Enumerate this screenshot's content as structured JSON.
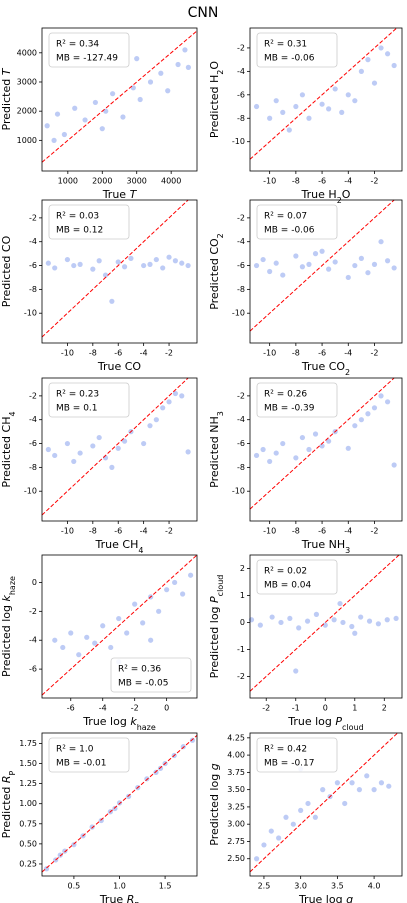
{
  "title": "CNN",
  "chart_data": [
    {
      "type": "scatter",
      "color": "#4169e1",
      "identity_line": "#ff0000",
      "annotation_loc": "upper left",
      "annotations": [
        "R² = 0.34",
        "MB = -127.49"
      ],
      "xlabel": [
        {
          "text": "True "
        },
        {
          "text": "T",
          "style": "italic"
        }
      ],
      "ylabel": [
        {
          "text": "Predicted "
        },
        {
          "text": "T",
          "style": "italic"
        }
      ],
      "xlim": [
        250,
        4750
      ],
      "ylim": [
        -50,
        4850
      ],
      "xticks": [
        1000,
        2000,
        3000,
        4000
      ],
      "yticks": [
        1000,
        2000,
        3000,
        4000
      ],
      "x": [
        400,
        700,
        900,
        1200,
        1500,
        1800,
        2100,
        2300,
        2600,
        2900,
        3100,
        3400,
        3700,
        3900,
        4200,
        4500,
        600,
        2000,
        3000,
        4400
      ],
      "values": [
        1500,
        1900,
        1200,
        2100,
        1700,
        2300,
        2000,
        2600,
        1800,
        2800,
        2400,
        3000,
        3300,
        2700,
        3600,
        3500,
        1000,
        1400,
        3800,
        4100
      ]
    },
    {
      "type": "scatter",
      "color": "#4169e1",
      "identity_line": "#ff0000",
      "annotation_loc": "upper left",
      "annotations": [
        "R² = 0.31",
        "MB = -0.06"
      ],
      "xlabel": [
        {
          "text": "True H"
        },
        {
          "text": "2",
          "style": "sub"
        },
        {
          "text": "O"
        }
      ],
      "ylabel": [
        {
          "text": "Predicted H"
        },
        {
          "text": "2",
          "style": "sub"
        },
        {
          "text": "O"
        }
      ],
      "xlim": [
        -11.5,
        0.1
      ],
      "ylim": [
        -12.5,
        -0.3
      ],
      "xticks": [
        -10,
        -8,
        -6,
        -4,
        -2
      ],
      "yticks": [
        -10,
        -8,
        -6,
        -4,
        -2
      ],
      "x": [
        -11,
        -10,
        -9.5,
        -9,
        -8,
        -7.5,
        -7,
        -6,
        -5.5,
        -5,
        -4,
        -3.5,
        -3,
        -2.5,
        -2,
        -1,
        -0.5,
        -8.5,
        -4.5,
        -1.5
      ],
      "values": [
        -7,
        -8,
        -6.5,
        -7.5,
        -7,
        -6,
        -8,
        -6.8,
        -7.2,
        -5.5,
        -6,
        -6.5,
        -4,
        -3,
        -5,
        -2.5,
        -3.5,
        -9,
        -7.5,
        -2
      ]
    },
    {
      "type": "scatter",
      "color": "#4169e1",
      "identity_line": "#ff0000",
      "annotation_loc": "upper left",
      "annotations": [
        "R² = 0.03",
        "MB = 0.12"
      ],
      "xlabel": [
        {
          "text": "True CO"
        }
      ],
      "ylabel": [
        {
          "text": "Predicted CO"
        }
      ],
      "xlim": [
        -12,
        0.2
      ],
      "ylim": [
        -12.5,
        -0.5
      ],
      "xticks": [
        -10,
        -8,
        -6,
        -4,
        -2
      ],
      "yticks": [
        -10,
        -8,
        -6,
        -4,
        -2
      ],
      "x": [
        -11.5,
        -11,
        -10,
        -9.5,
        -9,
        -8,
        -7.5,
        -7,
        -6,
        -5.5,
        -5,
        -4,
        -3.5,
        -3,
        -2.5,
        -2,
        -1,
        -0.5,
        -6.5,
        -1.5
      ],
      "values": [
        -5.8,
        -6.2,
        -5.5,
        -6,
        -5.9,
        -6.3,
        -5.6,
        -6.8,
        -5.7,
        -6.1,
        -5.4,
        -6,
        -5.9,
        -5.5,
        -6.2,
        -5.3,
        -5.8,
        -6,
        -9,
        -5.6
      ]
    },
    {
      "type": "scatter",
      "color": "#4169e1",
      "identity_line": "#ff0000",
      "annotation_loc": "upper left",
      "annotations": [
        "R² = 0.07",
        "MB = -0.06"
      ],
      "xlabel": [
        {
          "text": "True CO"
        },
        {
          "text": "2",
          "style": "sub"
        }
      ],
      "ylabel": [
        {
          "text": "Predicted CO"
        },
        {
          "text": "2",
          "style": "sub"
        }
      ],
      "xlim": [
        -11.5,
        0.1
      ],
      "ylim": [
        -12.5,
        -0.5
      ],
      "xticks": [
        -10,
        -8,
        -6,
        -4,
        -2
      ],
      "yticks": [
        -10,
        -8,
        -6,
        -4,
        -2
      ],
      "x": [
        -11,
        -10.5,
        -10,
        -9.5,
        -9,
        -8,
        -7.5,
        -7,
        -6,
        -5.5,
        -5,
        -4,
        -3.5,
        -3,
        -2.5,
        -2,
        -1,
        -0.5,
        -6.5,
        -1.5
      ],
      "values": [
        -6,
        -5.5,
        -6.5,
        -5.8,
        -6.8,
        -5.2,
        -6.1,
        -5.9,
        -4.8,
        -6.3,
        -5.7,
        -7,
        -6,
        -5.4,
        -6.6,
        -5.9,
        -5.6,
        -6.2,
        -5,
        -4
      ]
    },
    {
      "type": "scatter",
      "color": "#4169e1",
      "identity_line": "#ff0000",
      "annotation_loc": "upper left",
      "annotations": [
        "R² = 0.23",
        "MB = 0.1"
      ],
      "xlabel": [
        {
          "text": "True CH"
        },
        {
          "text": "4",
          "style": "sub"
        }
      ],
      "ylabel": [
        {
          "text": "Predicted CH"
        },
        {
          "text": "4",
          "style": "sub"
        }
      ],
      "xlim": [
        -12,
        0.2
      ],
      "ylim": [
        -12.5,
        -0.5
      ],
      "xticks": [
        -10,
        -8,
        -6,
        -4,
        -2
      ],
      "yticks": [
        -10,
        -8,
        -6,
        -4,
        -2
      ],
      "x": [
        -11.5,
        -11,
        -10,
        -9.5,
        -9,
        -8,
        -7.5,
        -7,
        -6,
        -5.5,
        -5,
        -4,
        -3.5,
        -3,
        -2.5,
        -2,
        -1,
        -0.5,
        -6.5,
        -1.5
      ],
      "values": [
        -6.5,
        -7,
        -6,
        -7.5,
        -6.8,
        -6.2,
        -5.5,
        -7.2,
        -6.4,
        -5.8,
        -5,
        -6,
        -4.5,
        -4,
        -3,
        -2.5,
        -2,
        -6.7,
        -8,
        -1.8
      ]
    },
    {
      "type": "scatter",
      "color": "#4169e1",
      "identity_line": "#ff0000",
      "annotation_loc": "upper left",
      "annotations": [
        "R² = 0.26",
        "MB = -0.39"
      ],
      "xlabel": [
        {
          "text": "True NH"
        },
        {
          "text": "3",
          "style": "sub"
        }
      ],
      "ylabel": [
        {
          "text": "Predicted NH"
        },
        {
          "text": "3",
          "style": "sub"
        }
      ],
      "xlim": [
        -11.5,
        0.1
      ],
      "ylim": [
        -12.5,
        -0.5
      ],
      "xticks": [
        -10,
        -8,
        -6,
        -4,
        -2
      ],
      "yticks": [
        -10,
        -8,
        -6,
        -4,
        -2
      ],
      "x": [
        -11,
        -10.5,
        -10,
        -9.5,
        -9,
        -8,
        -7.5,
        -7,
        -6,
        -5.5,
        -5,
        -4,
        -3.5,
        -3,
        -2.5,
        -2,
        -1,
        -0.5,
        -6.5,
        -1.5
      ],
      "values": [
        -7,
        -6.5,
        -7.5,
        -6.8,
        -6,
        -7.2,
        -5.5,
        -6.5,
        -6.2,
        -5.8,
        -5,
        -6.4,
        -4.5,
        -4,
        -3.5,
        -3,
        -2.5,
        -7.8,
        -5.2,
        -2
      ]
    },
    {
      "type": "scatter",
      "color": "#4169e1",
      "identity_line": "#ff0000",
      "annotation_loc": "lower right",
      "annotations": [
        "R² = 0.36",
        "MB = -0.05"
      ],
      "xlabel": [
        {
          "text": "True log "
        },
        {
          "text": "k",
          "style": "italic"
        },
        {
          "text": "haze",
          "style": "sub"
        }
      ],
      "ylabel": [
        {
          "text": "Predicted log "
        },
        {
          "text": "k",
          "style": "italic"
        },
        {
          "text": "haze",
          "style": "sub"
        }
      ],
      "xlim": [
        -7.8,
        1.9
      ],
      "ylim": [
        -8,
        1.9
      ],
      "xticks": [
        -6,
        -4,
        -2,
        0
      ],
      "yticks": [
        -6,
        -4,
        -2,
        0
      ],
      "x": [
        -7,
        -6.5,
        -6,
        -5.5,
        -5,
        -4.5,
        -4,
        -3.5,
        -3,
        -2.5,
        -2,
        -1.5,
        -1,
        -0.5,
        0,
        0.5,
        1,
        1.5,
        -3,
        -1
      ],
      "values": [
        -4,
        -4.5,
        -3.5,
        -5,
        -3.8,
        -4.2,
        -3,
        -4.5,
        -2.5,
        -3.5,
        -1.5,
        -2.8,
        -1,
        -2,
        -0.5,
        0,
        -0.8,
        0.5,
        -5.5,
        -4
      ]
    },
    {
      "type": "scatter",
      "color": "#4169e1",
      "identity_line": "#ff0000",
      "annotation_loc": "upper left",
      "annotations": [
        "R² = 0.02",
        "MB = 0.04"
      ],
      "xlabel": [
        {
          "text": "True log "
        },
        {
          "text": "P",
          "style": "italic"
        },
        {
          "text": "cloud",
          "style": "sub"
        }
      ],
      "ylabel": [
        {
          "text": "Predicted log "
        },
        {
          "text": "P",
          "style": "italic"
        },
        {
          "text": "cloud",
          "style": "sub"
        }
      ],
      "xlim": [
        -2.55,
        2.6
      ],
      "ylim": [
        -2.8,
        2.5
      ],
      "xticks": [
        -2,
        -1,
        0,
        1,
        2
      ],
      "yticks": [
        -2,
        -1,
        0,
        1,
        2
      ],
      "x": [
        -2.5,
        -2.2,
        -1.8,
        -1.5,
        -1.2,
        -0.9,
        -0.6,
        -0.3,
        0,
        0.3,
        0.6,
        0.9,
        1.2,
        1.5,
        1.8,
        2.1,
        2.4,
        -1,
        0.5,
        1
      ],
      "values": [
        0.1,
        -0.1,
        0.2,
        0,
        0.15,
        -0.2,
        0.05,
        0.3,
        -0.1,
        0.1,
        0,
        -0.15,
        0.2,
        0.05,
        -0.05,
        0.1,
        0.15,
        -1.8,
        0.7,
        -0.4
      ]
    },
    {
      "type": "scatter",
      "color": "#4169e1",
      "identity_line": "#ff0000",
      "annotation_loc": "upper left",
      "annotations": [
        "R² = 1.0",
        "MB = -0.01"
      ],
      "xlabel": [
        {
          "text": "True "
        },
        {
          "text": "R",
          "style": "italic"
        },
        {
          "text": "P",
          "style": "sub"
        }
      ],
      "ylabel": [
        {
          "text": "Predicted "
        },
        {
          "text": "R",
          "style": "italic"
        },
        {
          "text": "P",
          "style": "sub"
        }
      ],
      "xlim": [
        0.15,
        1.85
      ],
      "ylim": [
        0.1,
        1.88
      ],
      "xticks": [
        0.5,
        {
          "value": 1,
          "label": "1.0"
        },
        1.5
      ],
      "yticks": [
        0.25,
        {
          "value": 0.5,
          "label": "0.50"
        },
        0.75,
        {
          "value": 1,
          "label": "1.00"
        },
        1.25,
        {
          "value": 1.5,
          "label": "1.50"
        },
        1.75
      ],
      "x": [
        0.2,
        0.3,
        0.4,
        0.5,
        0.6,
        0.7,
        0.8,
        0.9,
        1,
        1.1,
        1.2,
        1.3,
        1.4,
        1.5,
        1.6,
        1.7,
        1.8,
        0.35,
        0.95,
        1.45
      ],
      "values": [
        0.19,
        0.3,
        0.41,
        0.49,
        0.6,
        0.71,
        0.79,
        0.9,
        1.01,
        1.09,
        1.2,
        1.31,
        1.39,
        1.5,
        1.6,
        1.71,
        1.79,
        0.36,
        0.94,
        1.44
      ]
    },
    {
      "type": "scatter",
      "color": "#4169e1",
      "identity_line": "#ff0000",
      "annotation_loc": "upper left",
      "annotations": [
        "R² = 0.42",
        "MB = -0.17"
      ],
      "xlabel": [
        {
          "text": "True log "
        },
        {
          "text": "g",
          "style": "italic"
        }
      ],
      "ylabel": [
        {
          "text": "Predicted log "
        },
        {
          "text": "g",
          "style": "italic"
        }
      ],
      "xlim": [
        2.31,
        4.38
      ],
      "ylim": [
        2.25,
        4.32
      ],
      "xticks": [
        2.5,
        {
          "value": 3,
          "label": "3.0"
        },
        3.5,
        {
          "value": 4,
          "label": "4.0"
        }
      ],
      "yticks": [
        {
          "value": 2.5,
          "label": "2.50"
        },
        2.75,
        {
          "value": 3,
          "label": "3.00"
        },
        3.25,
        {
          "value": 3.5,
          "label": "3.50"
        },
        3.75,
        {
          "value": 4,
          "label": "4.00"
        },
        4.25
      ],
      "x": [
        2.4,
        2.5,
        2.6,
        2.7,
        2.8,
        2.9,
        3.0,
        3.1,
        3.2,
        3.3,
        3.4,
        3.5,
        3.6,
        3.7,
        3.8,
        3.9,
        4.0,
        4.1,
        4.2,
        3.0
      ],
      "values": [
        2.5,
        2.7,
        2.9,
        2.8,
        3.1,
        3.0,
        3.2,
        3.3,
        3.1,
        3.5,
        3.4,
        3.6,
        3.3,
        3.6,
        3.5,
        3.7,
        3.5,
        3.6,
        3.55,
        3.8
      ]
    }
  ]
}
